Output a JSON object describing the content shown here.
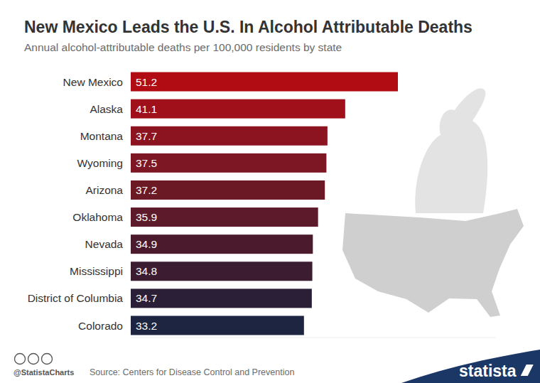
{
  "chart_data": {
    "type": "bar",
    "orientation": "horizontal",
    "title": "New Mexico Leads the U.S. In Alcohol Attributable Deaths",
    "subtitle": "Annual alcohol-attributable deaths per 100,000 residents by state",
    "categories": [
      "New Mexico",
      "Alaska",
      "Montana",
      "Wyoming",
      "Arizona",
      "Oklahoma",
      "Nevada",
      "Mississippi",
      "District of Columbia",
      "Colorado"
    ],
    "values": [
      51.2,
      41.1,
      37.7,
      37.5,
      37.2,
      35.9,
      34.9,
      34.8,
      34.7,
      33.2
    ],
    "colors": [
      "#b10c13",
      "#9f101b",
      "#8b1420",
      "#7d1723",
      "#6c1926",
      "#5c1a2a",
      "#4b1b2d",
      "#3b1c31",
      "#2b1f37",
      "#1d2540"
    ],
    "xlim": [
      0,
      70
    ],
    "tick_labels": false,
    "data_labels": true,
    "grid": false,
    "annotations": [
      "@StatistaCharts",
      "Source: Centers for Disease Control and Prevention",
      "statista"
    ]
  }
}
